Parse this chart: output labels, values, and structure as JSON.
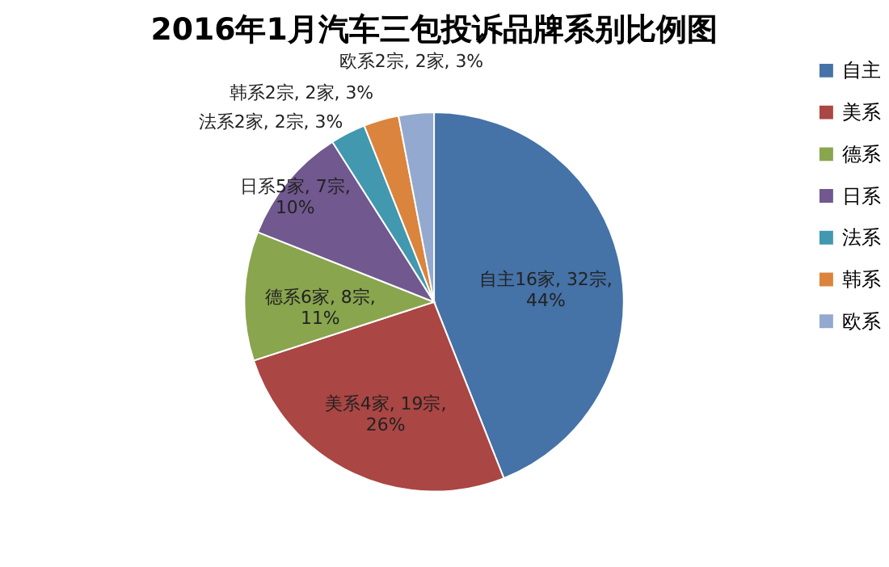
{
  "chart_data": {
    "type": "pie",
    "title": "2016年1月汽车三包投诉品牌系别比例图",
    "categories": [
      "自主",
      "美系",
      "德系",
      "日系",
      "法系",
      "韩系",
      "欧系"
    ],
    "values": [
      44,
      26,
      11,
      10,
      3,
      3,
      3
    ],
    "colors": [
      "#4572a7",
      "#aa4643",
      "#89a54e",
      "#71588f",
      "#4198af",
      "#db843d",
      "#93a9cf"
    ],
    "value_labels": [
      "自主16家, 32宗,\n44%",
      "美系4家, 19宗,\n26%",
      "德系6家, 8宗,\n11%",
      "日系5家, 7宗,\n10%",
      "法系2家, 2宗, 3%",
      "韩系2宗, 2家, 3%",
      "欧系2宗, 2家, 3%"
    ],
    "legend": "right"
  }
}
